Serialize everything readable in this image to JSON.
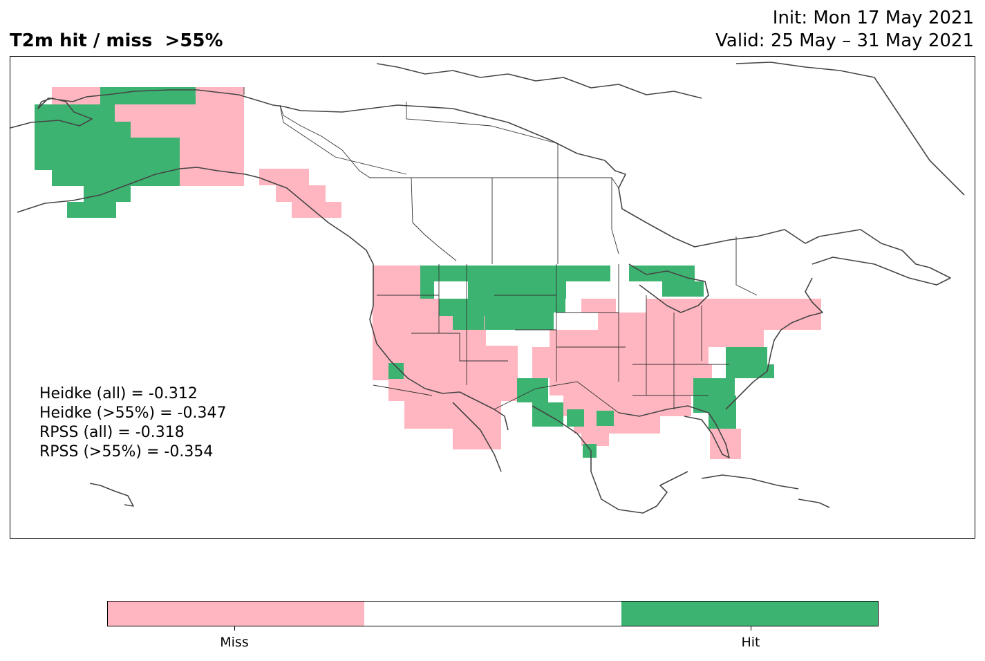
{
  "header": {
    "title": "T2m hit / miss  >55%",
    "init_line": "Init: Mon 17 May 2021",
    "valid_line": "Valid: 25 May – 31 May 2021"
  },
  "scores": {
    "heidke_all": "Heidke (all) = -0.312",
    "heidke_55": "Heidke (>55%) = -0.347",
    "rpss_all": "RPSS (all) = -0.318",
    "rpss_55": "RPSS (>55%) = -0.354"
  },
  "colorbar": {
    "labels": [
      "Miss",
      "Hit"
    ],
    "colors": [
      "#ffb6c1",
      "#ffffff",
      "#3cb371"
    ]
  },
  "colors": {
    "miss": "#ffb6c1",
    "hit": "#3cb371",
    "coastline": "#444444",
    "border": "#333333"
  },
  "map_data": {
    "regions": [
      {
        "name": "alaska",
        "outcome": "mixed"
      },
      {
        "name": "western-us",
        "outcome": "miss"
      },
      {
        "name": "northern-plains",
        "outcome": "hit"
      },
      {
        "name": "central-us",
        "outcome": "miss"
      },
      {
        "name": "southeast-us",
        "outcome": "hit"
      },
      {
        "name": "northeast-us",
        "outcome": "miss"
      },
      {
        "name": "great-lakes",
        "outcome": "hit"
      },
      {
        "name": "texas",
        "outcome": "mixed"
      },
      {
        "name": "florida",
        "outcome": "miss"
      }
    ]
  }
}
